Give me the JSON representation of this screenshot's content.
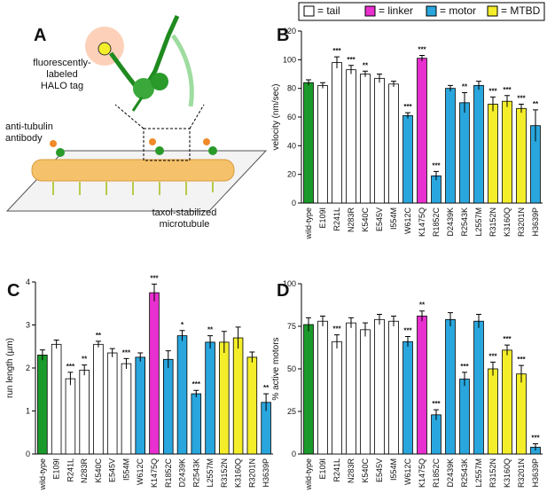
{
  "panel_labels": [
    "A",
    "B",
    "C",
    "D"
  ],
  "legend": [
    {
      "name": "= tail",
      "color": "#ffffff"
    },
    {
      "name": "= linker",
      "color": "#e82fcf"
    },
    {
      "name": "= motor",
      "color": "#29a6dd"
    },
    {
      "name": "= MTBD",
      "color": "#f4ee2a"
    }
  ],
  "diagram": {
    "halo_label": [
      "fluorescently-",
      "labeled",
      "HALO tag"
    ],
    "antibody_label": [
      "anti-tubulin",
      "antibody"
    ],
    "microtubule_label": [
      "taxol-stabilized",
      "microtubule"
    ]
  },
  "chart_data": [
    {
      "type": "bar",
      "y_label": "velocity (nm/sec)",
      "categories": [
        "wild-type",
        "E109I",
        "R241L",
        "N283R",
        "K540C",
        "E545V",
        "I554M",
        "W612C",
        "K1475Q",
        "R1852C",
        "D2439K",
        "R2543K",
        "L2557M",
        "R3152N",
        "K3160Q",
        "R3201N",
        "H3639P"
      ],
      "values": [
        84,
        82,
        98,
        93,
        90,
        87,
        83,
        61,
        101,
        19,
        80,
        70,
        82,
        69,
        71,
        66,
        54
      ],
      "errors": [
        2,
        2,
        4,
        3,
        2,
        3,
        2,
        2,
        2,
        3,
        2,
        7,
        3,
        5,
        4,
        3,
        11
      ],
      "colors": [
        "#1a9a2a",
        "#ffffff",
        "#ffffff",
        "#ffffff",
        "#ffffff",
        "#ffffff",
        "#ffffff",
        "#29a6dd",
        "#e82fcf",
        "#29a6dd",
        "#29a6dd",
        "#29a6dd",
        "#29a6dd",
        "#f4ee2a",
        "#f4ee2a",
        "#f4ee2a",
        "#29a6dd"
      ],
      "annotations": [
        null,
        null,
        "***",
        "***",
        "**",
        null,
        null,
        "***",
        "***",
        "***",
        null,
        "**",
        null,
        "***",
        "***",
        "***",
        "**"
      ],
      "ylim": [
        0,
        120
      ],
      "yticks": [
        0,
        20,
        40,
        60,
        80,
        100,
        120
      ]
    },
    {
      "type": "bar",
      "y_label": "run length (µm)",
      "categories": [
        "wild-type",
        "E109I",
        "R241L",
        "N283R",
        "K540C",
        "E545V",
        "I554M",
        "W612C",
        "K1475Q",
        "R1852C",
        "D2439K",
        "R2543K",
        "L2557M",
        "R3152N",
        "K3160Q",
        "R3201N",
        "H3639P"
      ],
      "values": [
        2.3,
        2.55,
        1.75,
        1.95,
        2.55,
        2.35,
        2.1,
        2.25,
        3.75,
        2.2,
        2.75,
        1.4,
        2.6,
        2.6,
        2.7,
        2.25,
        1.2
      ],
      "errors": [
        0.12,
        0.1,
        0.15,
        0.12,
        0.07,
        0.1,
        0.12,
        0.1,
        0.2,
        0.2,
        0.12,
        0.08,
        0.15,
        0.25,
        0.25,
        0.12,
        0.2
      ],
      "colors": [
        "#1a9a2a",
        "#ffffff",
        "#ffffff",
        "#ffffff",
        "#ffffff",
        "#ffffff",
        "#ffffff",
        "#29a6dd",
        "#e82fcf",
        "#29a6dd",
        "#29a6dd",
        "#29a6dd",
        "#29a6dd",
        "#f4ee2a",
        "#f4ee2a",
        "#f4ee2a",
        "#29a6dd"
      ],
      "annotations": [
        null,
        null,
        "***",
        "**",
        "**",
        null,
        "***",
        null,
        "***",
        null,
        "*",
        "***",
        "**",
        null,
        null,
        null,
        "**"
      ],
      "ylim": [
        0,
        4
      ],
      "yticks": [
        0,
        1,
        2,
        3,
        4
      ]
    },
    {
      "type": "bar",
      "y_label": "% active motors",
      "categories": [
        "wild-type",
        "E109I",
        "R241L",
        "N283R",
        "K540C",
        "E545V",
        "I554M",
        "W612C",
        "K1475Q",
        "R1852C",
        "D2439K",
        "R2543K",
        "L2557M",
        "R3152N",
        "K3160Q",
        "R3201N",
        "H3639P"
      ],
      "values": [
        76,
        78,
        66,
        77,
        73,
        79,
        78,
        66,
        81,
        23,
        79,
        44,
        78,
        50,
        61,
        47,
        4
      ],
      "errors": [
        4,
        3,
        4,
        3,
        4,
        3,
        3,
        3,
        3,
        3,
        4,
        4,
        4,
        4,
        3,
        5,
        2
      ],
      "colors": [
        "#1a9a2a",
        "#ffffff",
        "#ffffff",
        "#ffffff",
        "#ffffff",
        "#ffffff",
        "#ffffff",
        "#29a6dd",
        "#e82fcf",
        "#29a6dd",
        "#29a6dd",
        "#29a6dd",
        "#29a6dd",
        "#f4ee2a",
        "#f4ee2a",
        "#f4ee2a",
        "#29a6dd"
      ],
      "annotations": [
        null,
        null,
        "***",
        null,
        null,
        null,
        null,
        "***",
        "**",
        "***",
        null,
        "***",
        null,
        "***",
        "***",
        "***",
        "***"
      ],
      "ylim": [
        0,
        100
      ],
      "yticks": [
        0,
        25,
        50,
        75,
        100
      ]
    }
  ]
}
